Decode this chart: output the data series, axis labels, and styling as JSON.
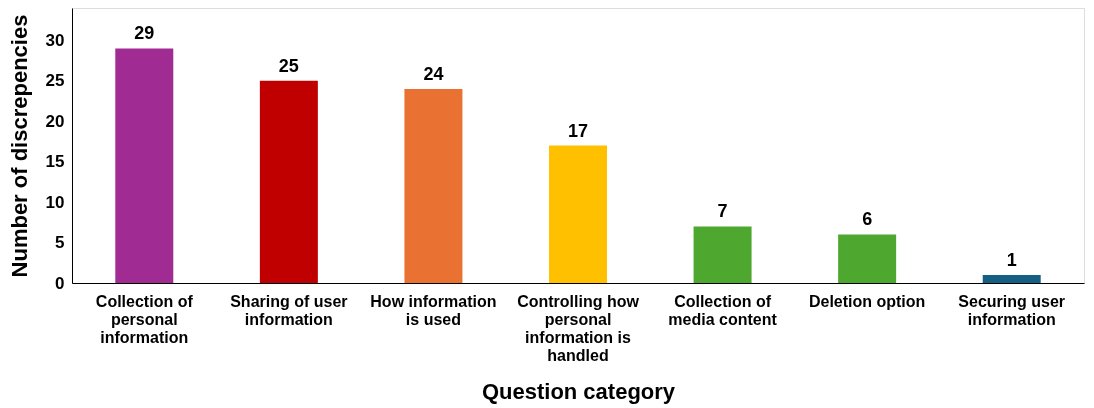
{
  "chart_data": {
    "type": "bar",
    "xlabel": "Question category",
    "ylabel": "Number of discrepencies",
    "categories": [
      "Collection of personal information",
      "Sharing of user information",
      "How information is used",
      "Controlling how personal information is handled",
      "Collection of media content",
      "Deletion option",
      "Securing user information"
    ],
    "values": [
      29,
      25,
      24,
      17,
      7,
      6,
      1
    ],
    "colors": [
      "#a02b93",
      "#c00000",
      "#e97132",
      "#ffc000",
      "#4ea72e",
      "#4ea72e",
      "#156082"
    ],
    "ylim": [
      0,
      34
    ],
    "yticks": [
      0,
      5,
      10,
      15,
      20,
      25,
      30
    ],
    "grid": false,
    "data_labels": true
  }
}
